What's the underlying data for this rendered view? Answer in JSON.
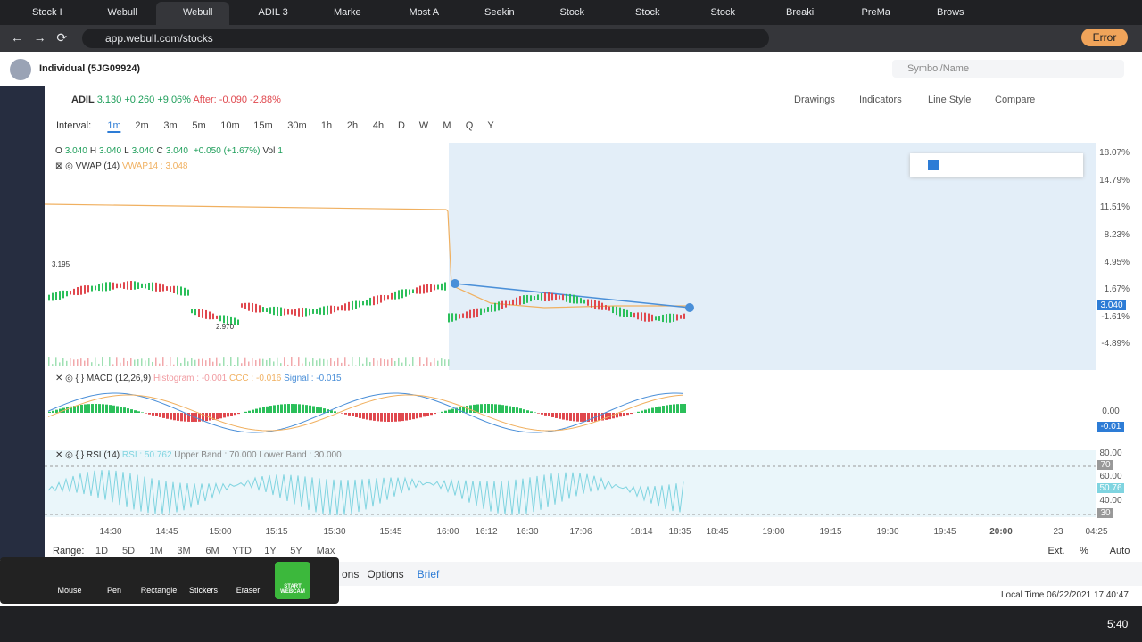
{
  "browser": {
    "tabs": [
      "Stock I",
      "Webull",
      "Webull",
      "ADIL 3",
      "Marke",
      "Most A",
      "Seekin",
      "Stock",
      "Stock",
      "Stock",
      "Breaki",
      "PreMa",
      "Brows"
    ],
    "url": "app.webull.com/stocks",
    "error": "Error"
  },
  "header": {
    "account": "Individual (5JG09924)",
    "search": "Symbol/Name"
  },
  "quote": {
    "symbol": "ADIL",
    "price": "3.130",
    "change": "+0.260",
    "change_pct": "+9.06%",
    "after_label": "After:",
    "after_change": "-0.090",
    "after_pct": "-2.88%"
  },
  "toolbar": [
    "Drawings",
    "Indicators",
    "Line Style",
    "Compare"
  ],
  "interval": {
    "label": "Interval:",
    "options": [
      "1m",
      "2m",
      "3m",
      "5m",
      "10m",
      "15m",
      "30m",
      "1h",
      "2h",
      "4h",
      "D",
      "W",
      "M",
      "Q",
      "Y"
    ]
  },
  "ohlc": [
    [
      "O",
      "3.040"
    ],
    [
      "H",
      "3.040"
    ],
    [
      "L",
      "3.040"
    ],
    [
      "C",
      "3.040"
    ],
    [
      "",
      "+0.050 (+1.67%)"
    ],
    [
      "Vol",
      "1"
    ]
  ],
  "vwap": {
    "name": "VWAP (14)",
    "value": "VWAP14 : 3.048"
  },
  "price_axis": [
    "18.07%",
    "14.79%",
    "11.51%",
    "8.23%",
    "4.95%",
    "1.67%",
    "3.040",
    "-1.61%",
    "-4.89%"
  ],
  "price_markers": [
    "3.195",
    "2.970"
  ],
  "macd": {
    "name": "MACD (12,26,9)",
    "histogram": "Histogram : -0.001",
    "ccc": "CCC : -0.016",
    "signal": "Signal : -0.015",
    "axis": [
      "0.00",
      "-0.01"
    ]
  },
  "rsi": {
    "name": "RSI (14)",
    "rsi": "RSI : 50.762",
    "upper": "Upper Band : 70.000",
    "lower": "Lower Band : 30.000",
    "axis": [
      "80.00",
      "70",
      "60.00",
      "50.76",
      "40.00",
      "30"
    ]
  },
  "time_axis": [
    "14:30",
    "14:45",
    "15:00",
    "15:15",
    "15:30",
    "15:45",
    "16:00",
    "16:12",
    "16:30",
    "17:06",
    "18:14",
    "18:35",
    "18:45",
    "19:00",
    "19:15",
    "19:30",
    "19:45",
    "20:00",
    "23",
    "04:25"
  ],
  "range": {
    "label": "Range:",
    "options": [
      "1D",
      "5D",
      "1M",
      "3M",
      "6M",
      "YTD",
      "1Y",
      "5Y",
      "Max"
    ],
    "right": [
      "Ext.",
      "%",
      "Auto"
    ]
  },
  "bottom_tabs": [
    "ons",
    "Options",
    "Brief"
  ],
  "status": {
    "local_time": "Local Time 06/22/2021 17:40:47"
  },
  "recorder": [
    "Mouse",
    "Pen",
    "Rectangle",
    "Stickers",
    "Eraser",
    "START WEBCAM"
  ],
  "taskbar": {
    "time": "5:40"
  }
}
